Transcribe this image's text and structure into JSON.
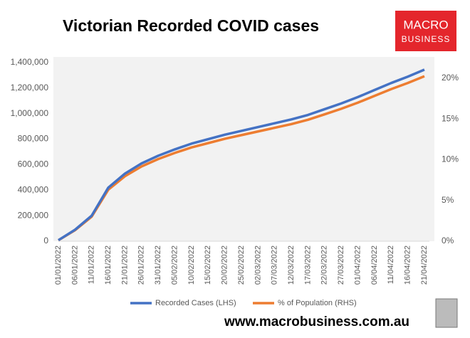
{
  "chart_data": {
    "type": "line",
    "title": "Victorian Recorded COVID cases",
    "categories": [
      "01/01/2022",
      "06/01/2022",
      "11/01/2022",
      "16/01/2022",
      "21/01/2022",
      "26/01/2022",
      "31/01/2022",
      "05/02/2022",
      "10/02/2022",
      "15/02/2022",
      "20/02/2022",
      "25/02/2022",
      "02/03/2022",
      "07/03/2022",
      "12/03/2022",
      "17/03/2022",
      "22/03/2022",
      "27/03/2022",
      "01/04/2022",
      "06/04/2022",
      "11/04/2022",
      "16/04/2022",
      "21/04/2022"
    ],
    "series": [
      {
        "name": "Recorded Cases (LHS)",
        "color": "#4472c4",
        "values": [
          8000,
          90000,
          200000,
          420000,
          530000,
          610000,
          670000,
          720000,
          765000,
          800000,
          835000,
          865000,
          895000,
          925000,
          955000,
          990000,
          1035000,
          1080000,
          1130000,
          1185000,
          1240000,
          1290000,
          1345000
        ]
      },
      {
        "name": "% of Population (RHS)",
        "color": "#ed7d31",
        "axis": "y2",
        "values": [
          0.12,
          1.35,
          3.01,
          6.32,
          7.97,
          9.17,
          10.08,
          10.83,
          11.5,
          12.03,
          12.56,
          13.01,
          13.46,
          13.91,
          14.36,
          14.89,
          15.56,
          16.24,
          16.99,
          17.82,
          18.65,
          19.4,
          20.23
        ]
      }
    ],
    "ylim": [
      0,
      1400000
    ],
    "yticks": [
      0,
      {
        "value": 200000,
        "label": "200,000"
      },
      {
        "value": 400000,
        "label": "400,000"
      },
      {
        "value": 600000,
        "label": "600,000"
      },
      {
        "value": 800000,
        "label": "800,000"
      },
      {
        "value": 1000000,
        "label": "1,000,000"
      },
      {
        "value": 1200000,
        "label": "1,200,000"
      },
      {
        "value": 1400000,
        "label": "1,400,000"
      }
    ],
    "y2lim": [
      0,
      21.9
    ],
    "y2ticks": [
      {
        "value": 0,
        "label": "0%"
      },
      {
        "value": 5,
        "label": "5%"
      },
      {
        "value": 10,
        "label": "10%"
      },
      {
        "value": 15,
        "label": "15%"
      },
      {
        "value": 20,
        "label": "20%"
      }
    ],
    "grid": false,
    "legend": "bottom"
  },
  "logo": {
    "line1": "MACRO",
    "line2": "BUSINESS"
  },
  "footer": "www.macrobusiness.com.au"
}
